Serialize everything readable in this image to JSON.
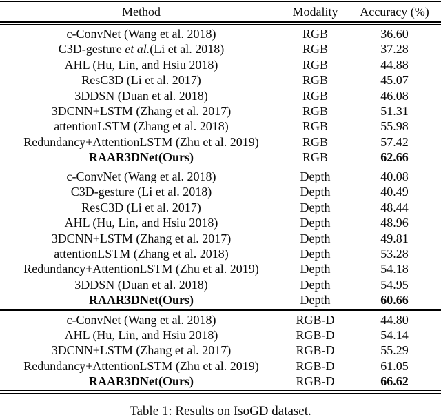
{
  "table": {
    "headers": {
      "method": "Method",
      "modality": "Modality",
      "accuracy": "Accuracy (%)"
    },
    "sections": [
      {
        "modality_group": "RGB",
        "rows": [
          {
            "method": "c-ConvNet (Wang et al. 2018)",
            "modality": "RGB",
            "accuracy": "36.60",
            "bold": false
          },
          {
            "method_pre": "C3D-gesture ",
            "method_italic": "et al.",
            "method_post": "(Li et al. 2018)",
            "modality": "RGB",
            "accuracy": "37.28",
            "bold": false
          },
          {
            "method": "AHL (Hu, Lin, and Hsiu 2018)",
            "modality": "RGB",
            "accuracy": "44.88",
            "bold": false
          },
          {
            "method": "ResC3D (Li et al. 2017)",
            "modality": "RGB",
            "accuracy": "45.07",
            "bold": false
          },
          {
            "method": "3DDSN (Duan et al. 2018)",
            "modality": "RGB",
            "accuracy": "46.08",
            "bold": false
          },
          {
            "method": "3DCNN+LSTM (Zhang et al. 2017)",
            "modality": "RGB",
            "accuracy": "51.31",
            "bold": false
          },
          {
            "method": "attentionLSTM (Zhang et al. 2018)",
            "modality": "RGB",
            "accuracy": "55.98",
            "bold": false
          },
          {
            "method": "Redundancy+AttentionLSTM (Zhu et al. 2019)",
            "modality": "RGB",
            "accuracy": "57.42",
            "bold": false
          },
          {
            "method": "RAAR3DNet(Ours)",
            "modality": "RGB",
            "accuracy": "62.66",
            "bold": true
          }
        ]
      },
      {
        "modality_group": "Depth",
        "rows": [
          {
            "method": "c-ConvNet (Wang et al. 2018)",
            "modality": "Depth",
            "accuracy": "40.08",
            "bold": false
          },
          {
            "method": "C3D-gesture (Li et al. 2018)",
            "modality": "Depth",
            "accuracy": "40.49",
            "bold": false
          },
          {
            "method": "ResC3D (Li et al. 2017)",
            "modality": "Depth",
            "accuracy": "48.44",
            "bold": false
          },
          {
            "method": "AHL (Hu, Lin, and Hsiu 2018)",
            "modality": "Depth",
            "accuracy": "48.96",
            "bold": false
          },
          {
            "method": "3DCNN+LSTM (Zhang et al. 2017)",
            "modality": "Depth",
            "accuracy": "49.81",
            "bold": false
          },
          {
            "method": "attentionLSTM (Zhang et al. 2018)",
            "modality": "Depth",
            "accuracy": "53.28",
            "bold": false
          },
          {
            "method": "Redundancy+AttentionLSTM (Zhu et al. 2019)",
            "modality": "Depth",
            "accuracy": "54.18",
            "bold": false
          },
          {
            "method": "3DDSN (Duan et al. 2018)",
            "modality": "Depth",
            "accuracy": "54.95",
            "bold": false
          },
          {
            "method": "RAAR3DNet(Ours)",
            "modality": "Depth",
            "accuracy": "60.66",
            "bold": true
          }
        ]
      },
      {
        "modality_group": "RGB-D",
        "rows": [
          {
            "method": "c-ConvNet (Wang et al. 2018)",
            "modality": "RGB-D",
            "accuracy": "44.80",
            "bold": false
          },
          {
            "method": "AHL (Hu, Lin, and Hsiu 2018)",
            "modality": "RGB-D",
            "accuracy": "54.14",
            "bold": false
          },
          {
            "method": "3DCNN+LSTM (Zhang et al. 2017)",
            "modality": "RGB-D",
            "accuracy": "55.29",
            "bold": false
          },
          {
            "method": "Redundancy+AttentionLSTM (Zhu et al. 2019)",
            "modality": "RGB-D",
            "accuracy": "61.05",
            "bold": false
          },
          {
            "method": "RAAR3DNet(Ours)",
            "modality": "RGB-D",
            "accuracy": "66.62",
            "bold": true
          }
        ]
      }
    ]
  },
  "caption": {
    "text": "Table 1: Results on IsoGD dataset."
  },
  "colors": {
    "text": "#0b0b0b",
    "rule": "#000000",
    "background": "#ffffff"
  }
}
